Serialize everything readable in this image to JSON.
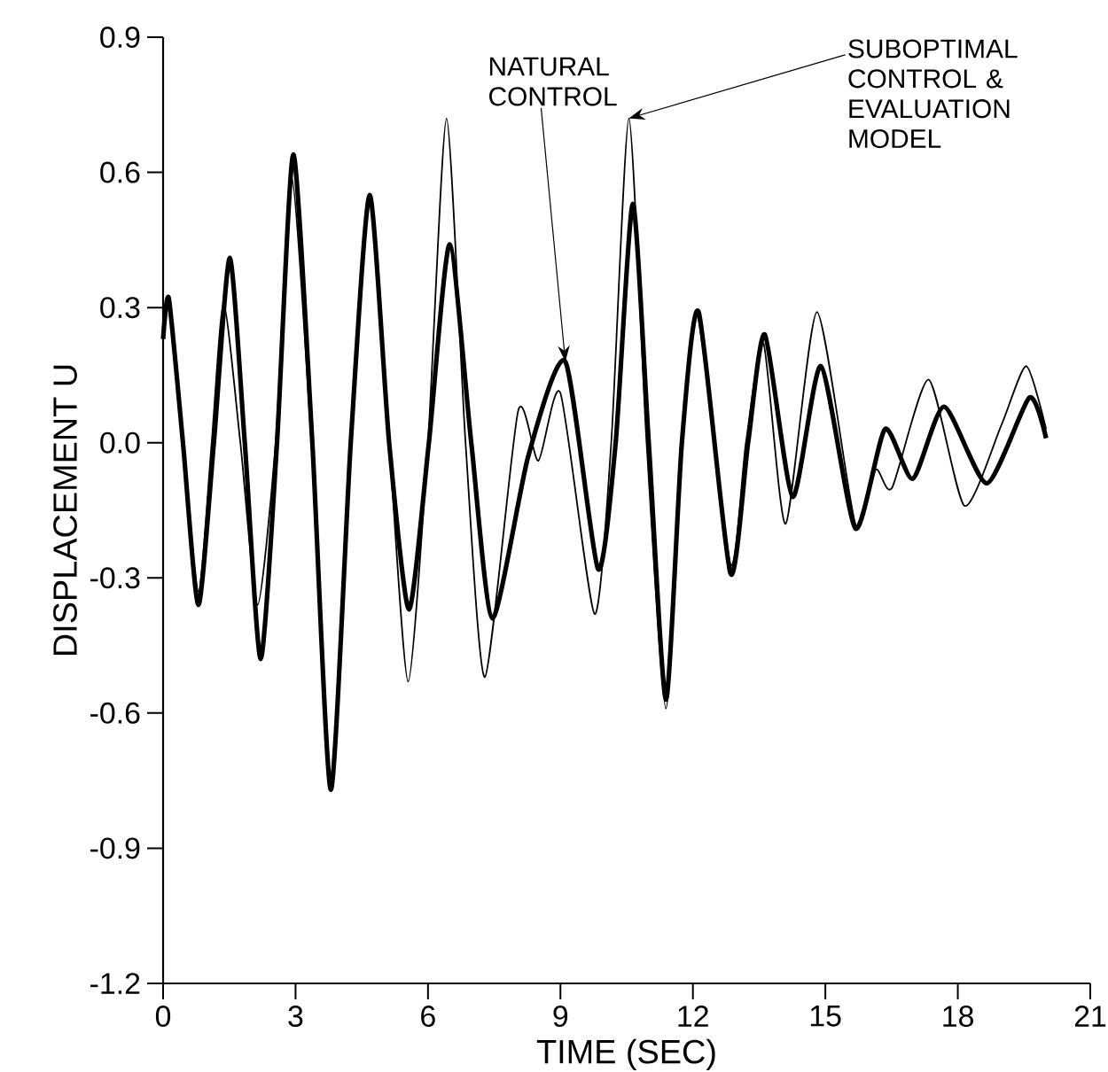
{
  "chart_data": {
    "type": "line",
    "xlabel": "TIME (SEC)",
    "ylabel": "DISPLACEMENT U",
    "xlim": [
      0,
      21
    ],
    "ylim": [
      -1.2,
      0.9
    ],
    "xticks": [
      0,
      3,
      6,
      9,
      12,
      15,
      18,
      21
    ],
    "yticks": [
      {
        "value": -1.2,
        "label": "-1.2"
      },
      {
        "value": -0.9,
        "label": "-0.9"
      },
      {
        "value": -0.6,
        "label": "-0.6"
      },
      {
        "value": -0.3,
        "label": "-0.3"
      },
      {
        "value": 0,
        "label": "0.0"
      },
      {
        "value": 0.3,
        "label": "0.3"
      },
      {
        "value": 0.6,
        "label": "0.6"
      },
      {
        "value": 0.9,
        "label": "0.9"
      }
    ],
    "marker": "none",
    "line_style": "solid",
    "series": [
      {
        "color": "#000000",
        "x": [
          0,
          0.13,
          0.45,
          0.8,
          1.15,
          1.51,
          1.85,
          2.21,
          2.58,
          2.95,
          3.38,
          3.8,
          4.25,
          4.68,
          5.12,
          5.57,
          6.02,
          6.49,
          6.98,
          7.46,
          8.27,
          9.11,
          9.85,
          10.25,
          10.64,
          11.0,
          11.39,
          11.75,
          12.13,
          12.85,
          13.25,
          13.63,
          14.26,
          14.9,
          15.68,
          16.35,
          16.98,
          17.69,
          18.66,
          19.62,
          20.0
        ],
        "values": [
          0.23,
          0.32,
          0.0,
          -0.36,
          0.0,
          0.41,
          0.0,
          -0.48,
          0.0,
          0.64,
          0.0,
          -0.77,
          0.0,
          0.55,
          0.0,
          -0.37,
          0.0,
          0.44,
          0.0,
          -0.39,
          -0.03,
          0.18,
          -0.28,
          0.0,
          0.53,
          0.0,
          -0.57,
          0.0,
          0.29,
          -0.29,
          0.0,
          0.24,
          -0.12,
          0.17,
          -0.19,
          0.03,
          -0.08,
          0.08,
          -0.09,
          0.1,
          0.01
        ]
      },
      {
        "color": "#000000",
        "x": [
          0,
          0.13,
          0.45,
          0.8,
          1.1,
          1.37,
          1.75,
          2.14,
          2.55,
          2.91,
          3.36,
          3.8,
          4.25,
          4.68,
          5.12,
          5.55,
          6.0,
          6.42,
          6.85,
          7.29,
          8.04,
          8.5,
          9.0,
          9.77,
          10.15,
          10.55,
          10.95,
          11.39,
          11.75,
          12.11,
          12.85,
          13.2,
          13.6,
          14.1,
          14.81,
          15.68,
          16.14,
          16.51,
          17.34,
          18.15,
          18.99,
          19.55,
          20.0
        ],
        "values": [
          0.23,
          0.32,
          0.0,
          -0.33,
          0.0,
          0.31,
          0.0,
          -0.36,
          0.0,
          0.59,
          0.0,
          -0.75,
          0.0,
          0.55,
          0.0,
          -0.53,
          0.0,
          0.72,
          0.0,
          -0.52,
          0.07,
          -0.04,
          0.11,
          -0.38,
          0.0,
          0.72,
          0.0,
          -0.59,
          0.0,
          0.28,
          -0.27,
          0.0,
          0.22,
          -0.18,
          0.29,
          -0.18,
          -0.06,
          -0.1,
          0.14,
          -0.14,
          0.04,
          0.17,
          0.03
        ]
      }
    ],
    "annotations": [
      {
        "text": "NATURAL CONTROL",
        "x": 9.11,
        "y": 0.18
      },
      {
        "text": "SUBOPTIMAL CONTROL & EVALUATION MODEL",
        "x": 10.55,
        "y": 0.72
      }
    ]
  }
}
